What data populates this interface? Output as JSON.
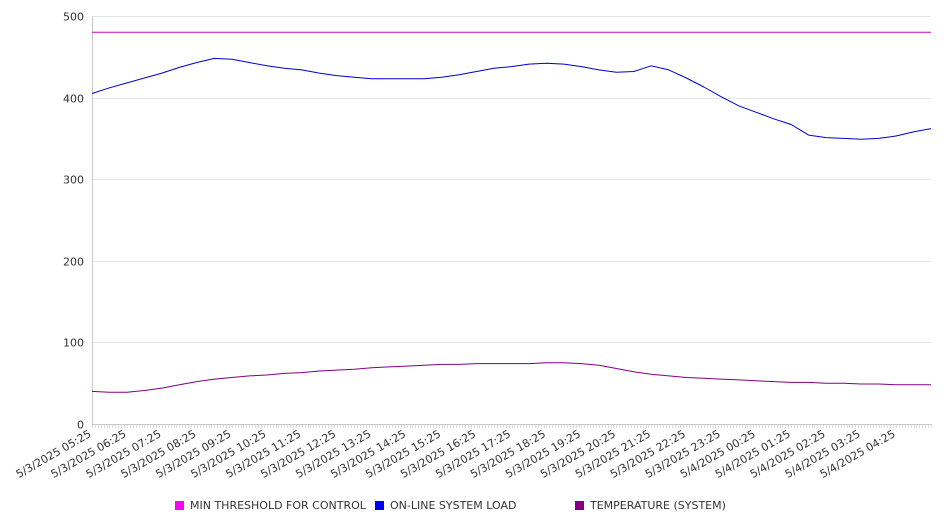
{
  "chart_data": {
    "type": "line",
    "title": "",
    "xlabel": "",
    "ylabel": "",
    "ylim": [
      0,
      500
    ],
    "yticks": [
      0,
      100,
      200,
      300,
      400,
      500
    ],
    "grid": "horizontal",
    "legend_position": "bottom",
    "x_tick_labels": [
      "5/3/2025 05:25",
      "5/3/2025 06:25",
      "5/3/2025 07:25",
      "5/3/2025 08:25",
      "5/3/2025 09:25",
      "5/3/2025 10:25",
      "5/3/2025 11:25",
      "5/3/2025 12:25",
      "5/3/2025 13:25",
      "5/3/2025 14:25",
      "5/3/2025 15:25",
      "5/3/2025 16:25",
      "5/3/2025 17:25",
      "5/3/2025 18:25",
      "5/3/2025 19:25",
      "5/3/2025 20:25",
      "5/3/2025 21:25",
      "5/3/2025 22:25",
      "5/3/2025 23:25",
      "5/4/2025 00:25",
      "5/4/2025 01:25",
      "5/4/2025 02:25",
      "5/4/2025 03:25",
      "5/4/2025 04:25"
    ],
    "series": [
      {
        "name": "MIN THRESHOLD FOR CONTROL",
        "color": "#cc00cc",
        "swatch_color": "#ff00ff",
        "points": [
          [
            "5/3/2025 05:25",
            480
          ],
          [
            "5/4/2025 05:25",
            480
          ]
        ]
      },
      {
        "name": "ON-LINE SYSTEM LOAD",
        "color": "#0000cc",
        "swatch_color": "#0000ff",
        "points": [
          [
            "5/3/2025 05:25",
            405
          ],
          [
            "5/3/2025 05:55",
            412
          ],
          [
            "5/3/2025 06:25",
            418
          ],
          [
            "5/3/2025 06:55",
            424
          ],
          [
            "5/3/2025 07:25",
            430
          ],
          [
            "5/3/2025 07:55",
            437
          ],
          [
            "5/3/2025 08:25",
            443
          ],
          [
            "5/3/2025 08:55",
            448
          ],
          [
            "5/3/2025 09:25",
            447
          ],
          [
            "5/3/2025 09:55",
            443
          ],
          [
            "5/3/2025 10:25",
            439
          ],
          [
            "5/3/2025 10:55",
            436
          ],
          [
            "5/3/2025 11:25",
            434
          ],
          [
            "5/3/2025 11:55",
            430
          ],
          [
            "5/3/2025 12:25",
            427
          ],
          [
            "5/3/2025 12:55",
            425
          ],
          [
            "5/3/2025 13:25",
            423
          ],
          [
            "5/3/2025 13:55",
            423
          ],
          [
            "5/3/2025 14:25",
            423
          ],
          [
            "5/3/2025 14:55",
            423
          ],
          [
            "5/3/2025 15:25",
            425
          ],
          [
            "5/3/2025 15:55",
            428
          ],
          [
            "5/3/2025 16:25",
            432
          ],
          [
            "5/3/2025 16:55",
            436
          ],
          [
            "5/3/2025 17:25",
            438
          ],
          [
            "5/3/2025 17:55",
            441
          ],
          [
            "5/3/2025 18:25",
            442
          ],
          [
            "5/3/2025 18:55",
            441
          ],
          [
            "5/3/2025 19:25",
            438
          ],
          [
            "5/3/2025 19:55",
            434
          ],
          [
            "5/3/2025 20:25",
            431
          ],
          [
            "5/3/2025 20:55",
            432
          ],
          [
            "5/3/2025 21:25",
            439
          ],
          [
            "5/3/2025 21:55",
            434
          ],
          [
            "5/3/2025 22:25",
            424
          ],
          [
            "5/3/2025 22:55",
            413
          ],
          [
            "5/3/2025 23:25",
            401
          ],
          [
            "5/3/2025 23:55",
            390
          ],
          [
            "5/4/2025 00:25",
            382
          ],
          [
            "5/4/2025 00:55",
            374
          ],
          [
            "5/4/2025 01:25",
            367
          ],
          [
            "5/4/2025 01:55",
            354
          ],
          [
            "5/4/2025 02:25",
            351
          ],
          [
            "5/4/2025 02:55",
            350
          ],
          [
            "5/4/2025 03:25",
            349
          ],
          [
            "5/4/2025 03:55",
            350
          ],
          [
            "5/4/2025 04:25",
            353
          ],
          [
            "5/4/2025 04:55",
            358
          ],
          [
            "5/4/2025 05:25",
            362
          ]
        ]
      },
      {
        "name": "TEMPERATURE (SYSTEM)",
        "color": "#800080",
        "swatch_color": "#800080",
        "points": [
          [
            "5/3/2025 05:25",
            40
          ],
          [
            "5/3/2025 05:55",
            39
          ],
          [
            "5/3/2025 06:25",
            39
          ],
          [
            "5/3/2025 06:55",
            41
          ],
          [
            "5/3/2025 07:25",
            44
          ],
          [
            "5/3/2025 07:55",
            48
          ],
          [
            "5/3/2025 08:25",
            52
          ],
          [
            "5/3/2025 08:55",
            55
          ],
          [
            "5/3/2025 09:25",
            57
          ],
          [
            "5/3/2025 09:55",
            59
          ],
          [
            "5/3/2025 10:25",
            60
          ],
          [
            "5/3/2025 10:55",
            62
          ],
          [
            "5/3/2025 11:25",
            63
          ],
          [
            "5/3/2025 11:55",
            65
          ],
          [
            "5/3/2025 12:25",
            66
          ],
          [
            "5/3/2025 12:55",
            67
          ],
          [
            "5/3/2025 13:25",
            69
          ],
          [
            "5/3/2025 13:55",
            70
          ],
          [
            "5/3/2025 14:25",
            71
          ],
          [
            "5/3/2025 14:55",
            72
          ],
          [
            "5/3/2025 15:25",
            73
          ],
          [
            "5/3/2025 15:55",
            73
          ],
          [
            "5/3/2025 16:25",
            74
          ],
          [
            "5/3/2025 16:55",
            74
          ],
          [
            "5/3/2025 17:25",
            74
          ],
          [
            "5/3/2025 17:55",
            74
          ],
          [
            "5/3/2025 18:25",
            75
          ],
          [
            "5/3/2025 18:55",
            75
          ],
          [
            "5/3/2025 19:25",
            74
          ],
          [
            "5/3/2025 19:55",
            72
          ],
          [
            "5/3/2025 20:25",
            68
          ],
          [
            "5/3/2025 20:55",
            64
          ],
          [
            "5/3/2025 21:25",
            61
          ],
          [
            "5/3/2025 21:55",
            59
          ],
          [
            "5/3/2025 22:25",
            57
          ],
          [
            "5/3/2025 22:55",
            56
          ],
          [
            "5/3/2025 23:25",
            55
          ],
          [
            "5/3/2025 23:55",
            54
          ],
          [
            "5/4/2025 00:25",
            53
          ],
          [
            "5/4/2025 00:55",
            52
          ],
          [
            "5/4/2025 01:25",
            51
          ],
          [
            "5/4/2025 01:55",
            51
          ],
          [
            "5/4/2025 02:25",
            50
          ],
          [
            "5/4/2025 02:55",
            50
          ],
          [
            "5/4/2025 03:25",
            49
          ],
          [
            "5/4/2025 03:55",
            49
          ],
          [
            "5/4/2025 04:25",
            48
          ],
          [
            "5/4/2025 04:55",
            48
          ],
          [
            "5/4/2025 05:25",
            48
          ]
        ]
      }
    ]
  }
}
